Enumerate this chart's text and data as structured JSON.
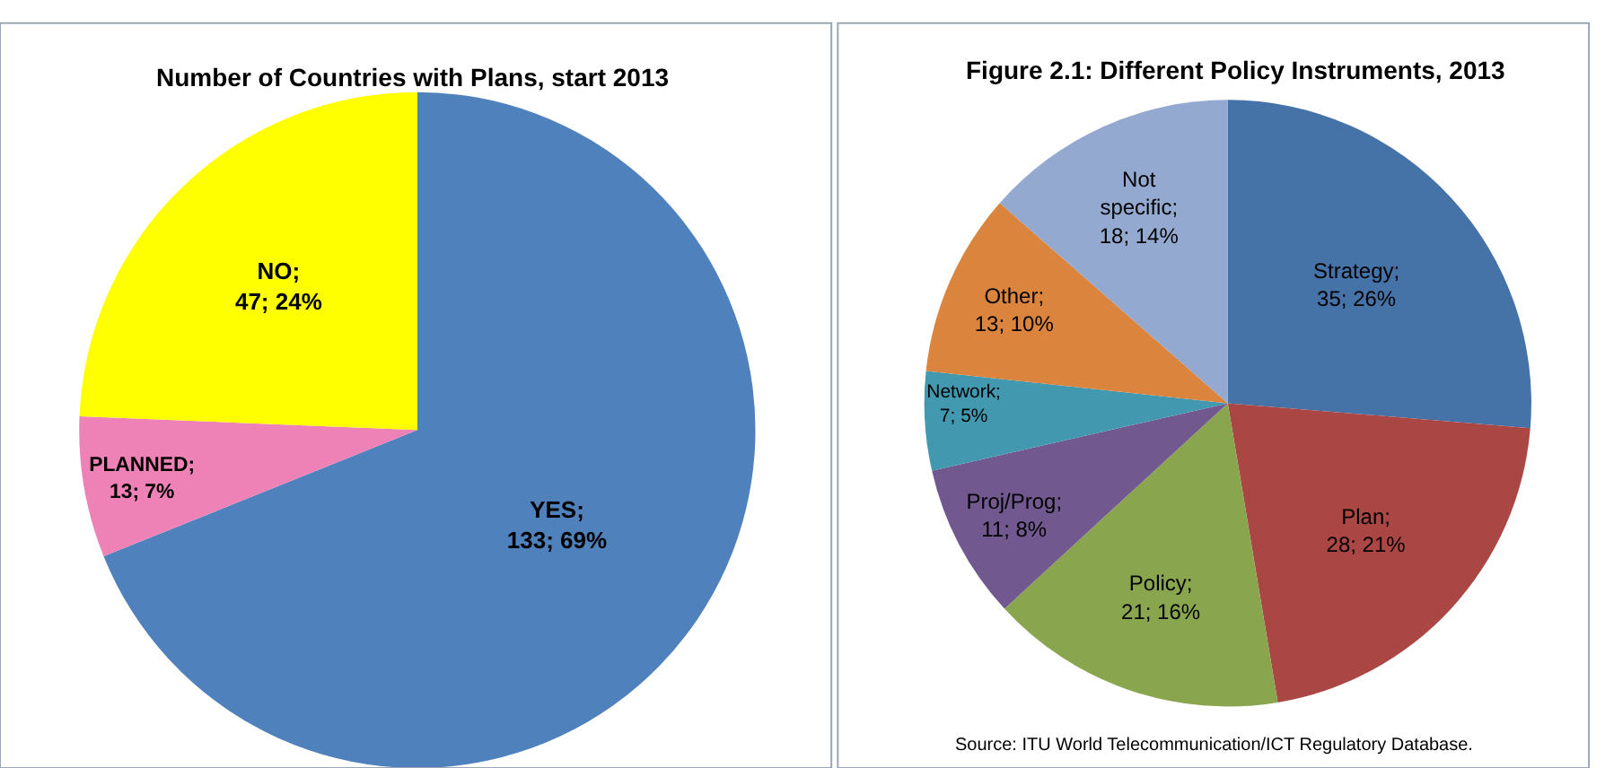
{
  "chart_data": [
    {
      "type": "pie",
      "title": "Number of Countries with Plans, start 2013",
      "categories": [
        "YES",
        "PLANNED",
        "NO"
      ],
      "values": [
        133,
        13,
        47
      ],
      "value_labels": [
        ";\n133; 69%",
        ";\n13; 7%",
        ";\n47; 24%"
      ],
      "colors": [
        "#4f81bd",
        "#ee82b6",
        "#ffff00"
      ]
    },
    {
      "type": "pie",
      "title": "Figure 2.1: Different Policy Instruments, 2013",
      "categories": [
        "Strategy",
        "Plan",
        "Policy",
        "Proj/Prog",
        "Network",
        "Other",
        "Not specific"
      ],
      "values": [
        35,
        28,
        21,
        11,
        7,
        13,
        18
      ],
      "value_labels": [
        ";\n35; 26%",
        ";\n28; 21%",
        ";\n21; 16%",
        ";\n11; 8%",
        ";\n7; 5%",
        ";\n13; 10%",
        ";\n18; 14%"
      ],
      "colors": [
        "#4572a7",
        "#aa4643",
        "#89a54e",
        "#71588f",
        "#4198af",
        "#db843d",
        "#93a9cf"
      ],
      "annotations": [
        "Source: ITU World Telecommunication/ICT Regulatory Database."
      ]
    }
  ]
}
